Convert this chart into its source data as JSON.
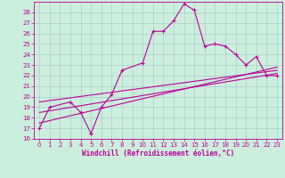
{
  "xlabel": "Windchill (Refroidissement éolien,°C)",
  "bg_color": "#cceedd",
  "grid_color": "#aacccc",
  "line_color": "#bb0099",
  "xlim": [
    -0.5,
    23.5
  ],
  "ylim": [
    16,
    29
  ],
  "xticks": [
    0,
    1,
    2,
    3,
    4,
    5,
    6,
    7,
    8,
    9,
    10,
    11,
    12,
    13,
    14,
    15,
    16,
    17,
    18,
    19,
    20,
    21,
    22,
    23
  ],
  "yticks": [
    16,
    17,
    18,
    19,
    20,
    21,
    22,
    23,
    24,
    25,
    26,
    27,
    28
  ],
  "series1_x": [
    0,
    1,
    3,
    4,
    5,
    5,
    6,
    7,
    8,
    10,
    11,
    12,
    13,
    14,
    15,
    16,
    17,
    18,
    19,
    20,
    21,
    22,
    23
  ],
  "series1_y": [
    17,
    19,
    19.5,
    18.5,
    16.5,
    16.5,
    19,
    20.2,
    22.5,
    23.2,
    26.2,
    26.2,
    27.2,
    28.8,
    28.2,
    24.8,
    25.0,
    24.8,
    24.0,
    23.0,
    23.8,
    22.0,
    22.0
  ],
  "series2_x": [
    0,
    23
  ],
  "series2_y": [
    17.5,
    22.8
  ],
  "series3_x": [
    0,
    23
  ],
  "series3_y": [
    18.5,
    22.2
  ],
  "series4_x": [
    0,
    23
  ],
  "series4_y": [
    19.5,
    22.5
  ],
  "xlabel_fontsize": 5.5,
  "tick_fontsize": 5,
  "linewidth": 0.8,
  "marker_size": 3
}
